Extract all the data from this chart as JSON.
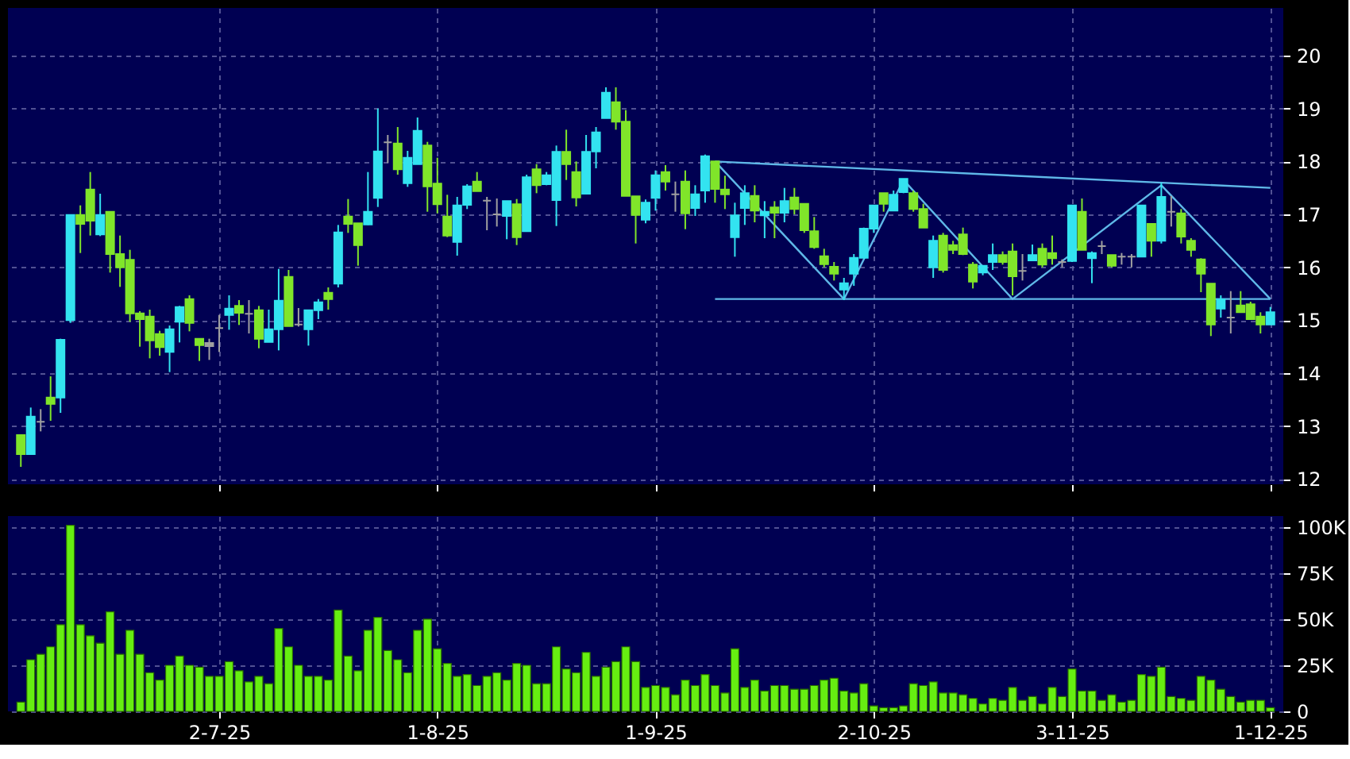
{
  "chart_data": [
    {
      "type": "candlestick",
      "tick_labels": "y",
      "grid": true,
      "categories": [
        null,
        null,
        null,
        null,
        null,
        null,
        null,
        null,
        null,
        null,
        null,
        null,
        null,
        null,
        null,
        null,
        null,
        null,
        null,
        null,
        null,
        null,
        null,
        null,
        null,
        null,
        null,
        null,
        null,
        null,
        null,
        null,
        null,
        null,
        null,
        null,
        null,
        null,
        null,
        null,
        null,
        null,
        null,
        null,
        null,
        null,
        null,
        null,
        null,
        null,
        null,
        null,
        null,
        null,
        null,
        null,
        null,
        null,
        null,
        null,
        null,
        null,
        null,
        null,
        null,
        null,
        null,
        null,
        null,
        null,
        null,
        null,
        null,
        null,
        null,
        null,
        null,
        null,
        null,
        null,
        null,
        null,
        null,
        null,
        null,
        null,
        null,
        null,
        null,
        null,
        null,
        null,
        null,
        null,
        null,
        null,
        null,
        null,
        null,
        null,
        null,
        null,
        null,
        null,
        null,
        null,
        null,
        null,
        null,
        null,
        null,
        null,
        null,
        null,
        null,
        null,
        null,
        null,
        null,
        null,
        null,
        null,
        null,
        null,
        null,
        null,
        null
      ],
      "ohlc": [
        [
          12.83,
          12.83,
          12.23,
          12.47
        ],
        [
          12.47,
          13.35,
          12.47,
          13.18
        ],
        [
          13.08,
          13.32,
          12.9,
          13.08
        ],
        [
          13.54,
          13.94,
          13.1,
          13.42
        ],
        [
          13.54,
          14.65,
          13.25,
          14.63
        ],
        [
          15.0,
          16.99,
          14.95,
          16.99
        ],
        [
          16.99,
          17.17,
          16.27,
          16.82
        ],
        [
          17.47,
          17.8,
          16.6,
          16.88
        ],
        [
          16.62,
          17.39,
          16.59,
          16.99
        ],
        [
          17.05,
          17.05,
          15.9,
          16.25
        ],
        [
          16.25,
          16.6,
          15.63,
          16.0
        ],
        [
          16.14,
          16.33,
          14.97,
          15.13
        ],
        [
          15.13,
          15.17,
          14.5,
          15.02
        ],
        [
          15.07,
          15.2,
          14.28,
          14.62
        ],
        [
          14.74,
          14.8,
          14.33,
          14.49
        ],
        [
          14.4,
          14.9,
          14.02,
          14.83
        ],
        [
          14.97,
          15.27,
          14.58,
          15.25
        ],
        [
          15.4,
          15.47,
          14.79,
          14.95
        ],
        [
          14.65,
          14.65,
          14.23,
          14.53
        ],
        [
          14.57,
          14.65,
          14.25,
          14.51
        ],
        [
          14.85,
          15.1,
          14.4,
          14.85
        ],
        [
          15.1,
          15.47,
          14.82,
          15.22
        ],
        [
          15.27,
          15.38,
          14.91,
          15.14
        ],
        [
          15.12,
          15.38,
          14.75,
          15.12
        ],
        [
          15.19,
          15.27,
          14.47,
          14.65
        ],
        [
          14.59,
          15.2,
          14.59,
          14.83
        ],
        [
          14.83,
          15.97,
          14.43,
          15.37
        ],
        [
          15.82,
          15.95,
          14.89,
          14.89
        ],
        [
          14.92,
          15.23,
          14.88,
          14.92
        ],
        [
          14.83,
          15.19,
          14.52,
          15.19
        ],
        [
          15.19,
          15.4,
          15.02,
          15.34
        ],
        [
          15.52,
          15.62,
          15.2,
          15.4
        ],
        [
          15.69,
          16.8,
          15.62,
          16.66
        ],
        [
          16.96,
          17.29,
          16.65,
          16.82
        ],
        [
          16.83,
          16.83,
          16.03,
          16.42
        ],
        [
          16.81,
          17.8,
          16.8,
          17.05
        ],
        [
          17.31,
          19.0,
          17.14,
          18.19
        ],
        [
          18.36,
          18.5,
          17.97,
          18.36
        ],
        [
          18.34,
          18.65,
          17.75,
          17.85
        ],
        [
          17.59,
          18.2,
          17.52,
          18.07
        ],
        [
          17.95,
          18.83,
          17.95,
          18.58
        ],
        [
          18.3,
          18.37,
          17.05,
          17.53
        ],
        [
          17.58,
          18.07,
          17.02,
          17.19
        ],
        [
          16.96,
          17.37,
          16.57,
          16.6
        ],
        [
          16.48,
          17.33,
          16.22,
          17.17
        ],
        [
          17.18,
          17.57,
          17.1,
          17.53
        ],
        [
          17.62,
          17.8,
          17.44,
          17.44
        ],
        [
          17.26,
          17.33,
          16.7,
          17.26
        ],
        [
          17.0,
          17.3,
          16.77,
          17.0
        ],
        [
          16.97,
          17.25,
          16.53,
          17.25
        ],
        [
          17.19,
          17.29,
          16.42,
          16.57
        ],
        [
          16.68,
          17.75,
          16.68,
          17.7
        ],
        [
          17.85,
          17.95,
          17.4,
          17.55
        ],
        [
          17.57,
          17.8,
          17.55,
          17.74
        ],
        [
          17.27,
          18.3,
          16.78,
          18.18
        ],
        [
          18.18,
          18.6,
          17.65,
          17.95
        ],
        [
          17.8,
          18.0,
          17.15,
          17.32
        ],
        [
          17.39,
          18.5,
          17.39,
          18.18
        ],
        [
          18.19,
          18.65,
          17.87,
          18.55
        ],
        [
          18.82,
          19.4,
          18.82,
          19.3
        ],
        [
          19.12,
          19.4,
          18.6,
          18.75
        ],
        [
          18.75,
          18.97,
          17.35,
          17.35
        ],
        [
          17.34,
          17.34,
          16.45,
          16.99
        ],
        [
          16.9,
          17.28,
          16.83,
          17.22
        ],
        [
          17.31,
          17.83,
          17.07,
          17.74
        ],
        [
          17.8,
          17.93,
          17.45,
          17.62
        ],
        [
          17.38,
          17.62,
          17.05,
          17.38
        ],
        [
          17.62,
          17.83,
          16.72,
          17.02
        ],
        [
          17.12,
          17.55,
          16.97,
          17.38
        ],
        [
          17.45,
          18.13,
          17.22,
          18.1
        ],
        [
          18.0,
          18.0,
          17.22,
          17.48
        ],
        [
          17.47,
          17.73,
          17.1,
          17.38
        ],
        [
          16.57,
          17.22,
          16.2,
          16.98
        ],
        [
          17.12,
          17.55,
          16.8,
          17.4
        ],
        [
          17.35,
          17.55,
          16.85,
          17.07
        ],
        [
          16.98,
          17.25,
          16.55,
          17.05
        ],
        [
          17.13,
          17.25,
          16.55,
          17.03
        ],
        [
          17.03,
          17.5,
          16.85,
          17.25
        ],
        [
          17.32,
          17.5,
          17.0,
          17.1
        ],
        [
          17.2,
          17.2,
          16.65,
          16.7
        ],
        [
          16.68,
          16.95,
          16.35,
          16.38
        ],
        [
          16.21,
          16.35,
          16.0,
          16.06
        ],
        [
          16.01,
          16.1,
          15.75,
          15.88
        ],
        [
          15.58,
          15.8,
          15.38,
          15.7
        ],
        [
          15.88,
          16.25,
          15.65,
          16.18
        ],
        [
          16.18,
          16.75,
          16.18,
          16.73
        ],
        [
          16.73,
          17.17,
          16.65,
          17.17
        ],
        [
          17.4,
          17.4,
          17.05,
          17.2
        ],
        [
          17.07,
          17.45,
          17.07,
          17.37
        ],
        [
          17.42,
          17.67,
          17.4,
          17.67
        ],
        [
          17.4,
          17.45,
          17.05,
          17.1
        ],
        [
          17.1,
          17.2,
          16.75,
          16.75
        ],
        [
          16.0,
          16.6,
          15.8,
          16.5
        ],
        [
          16.6,
          16.65,
          15.9,
          15.95
        ],
        [
          16.42,
          16.5,
          16.25,
          16.33
        ],
        [
          16.62,
          16.75,
          16.23,
          16.25
        ],
        [
          16.05,
          16.1,
          15.6,
          15.73
        ],
        [
          15.9,
          16.03,
          15.85,
          16.03
        ],
        [
          16.1,
          16.45,
          15.95,
          16.23
        ],
        [
          16.23,
          16.3,
          16.05,
          16.1
        ],
        [
          16.3,
          16.45,
          15.47,
          15.83
        ],
        [
          15.93,
          16.25,
          15.75,
          15.93
        ],
        [
          16.13,
          16.43,
          16.13,
          16.23
        ],
        [
          16.35,
          16.45,
          16.0,
          16.05
        ],
        [
          16.27,
          16.6,
          16.05,
          16.17
        ],
        [
          16.1,
          16.15,
          16.0,
          16.1
        ],
        [
          16.12,
          17.17,
          16.1,
          17.17
        ],
        [
          17.05,
          17.3,
          16.33,
          16.33
        ],
        [
          16.17,
          16.3,
          15.7,
          16.27
        ],
        [
          16.4,
          16.5,
          16.25,
          16.4
        ],
        [
          16.23,
          16.23,
          16.0,
          16.03
        ],
        [
          16.2,
          16.27,
          16.05,
          16.2
        ],
        [
          16.2,
          16.25,
          16.0,
          16.2
        ],
        [
          16.2,
          17.17,
          16.2,
          17.17
        ],
        [
          16.82,
          16.82,
          16.2,
          16.5
        ],
        [
          16.5,
          17.6,
          16.45,
          17.33
        ],
        [
          17.05,
          17.35,
          16.77,
          17.05
        ],
        [
          17.02,
          17.1,
          16.45,
          16.58
        ],
        [
          16.5,
          16.55,
          16.2,
          16.33
        ],
        [
          16.15,
          16.17,
          15.53,
          15.88
        ],
        [
          15.69,
          15.69,
          14.7,
          14.92
        ],
        [
          15.22,
          15.47,
          15.05,
          15.39
        ],
        [
          15.05,
          15.55,
          14.75,
          15.05
        ],
        [
          15.28,
          15.55,
          15.15,
          15.15
        ],
        [
          15.3,
          15.35,
          15.02,
          15.02
        ],
        [
          15.07,
          15.15,
          14.75,
          14.92
        ],
        [
          14.92,
          15.25,
          14.92,
          15.15
        ]
      ],
      "colors": [
        "#80e52a",
        "#33e3f0",
        "#a0a0a0",
        "#80e52a",
        "#33e3f0",
        "#33e3f0",
        "#80e52a",
        "#80e52a",
        "#33e3f0",
        "#80e52a",
        "#80e52a",
        "#80e52a",
        "#80e52a",
        "#80e52a",
        "#80e52a",
        "#33e3f0",
        "#33e3f0",
        "#80e52a",
        "#80e52a",
        "#a0a0a0",
        "#a0a0a0",
        "#33e3f0",
        "#80e52a",
        "#a0a0a0",
        "#80e52a",
        "#33e3f0",
        "#33e3f0",
        "#80e52a",
        "#a0a0a0",
        "#33e3f0",
        "#33e3f0",
        "#80e52a",
        "#33e3f0",
        "#80e52a",
        "#80e52a",
        "#33e3f0",
        "#33e3f0",
        "#a0a0a0",
        "#80e52a",
        "#33e3f0",
        "#33e3f0",
        "#80e52a",
        "#80e52a",
        "#80e52a",
        "#33e3f0",
        "#33e3f0",
        "#80e52a",
        "#a0a0a0",
        "#a0a0a0",
        "#33e3f0",
        "#80e52a",
        "#33e3f0",
        "#80e52a",
        "#33e3f0",
        "#33e3f0",
        "#80e52a",
        "#80e52a",
        "#33e3f0",
        "#33e3f0",
        "#33e3f0",
        "#80e52a",
        "#80e52a",
        "#80e52a",
        "#33e3f0",
        "#33e3f0",
        "#80e52a",
        "#a0a0a0",
        "#80e52a",
        "#33e3f0",
        "#33e3f0",
        "#80e52a",
        "#80e52a",
        "#33e3f0",
        "#33e3f0",
        "#80e52a",
        "#33e3f0",
        "#80e52a",
        "#33e3f0",
        "#80e52a",
        "#80e52a",
        "#80e52a",
        "#80e52a",
        "#80e52a",
        "#33e3f0",
        "#33e3f0",
        "#33e3f0",
        "#33e3f0",
        "#80e52a",
        "#33e3f0",
        "#33e3f0",
        "#80e52a",
        "#80e52a",
        "#33e3f0",
        "#80e52a",
        "#80e52a",
        "#80e52a",
        "#80e52a",
        "#33e3f0",
        "#33e3f0",
        "#80e52a",
        "#80e52a",
        "#a0a0a0",
        "#33e3f0",
        "#80e52a",
        "#80e52a",
        "#a0a0a0",
        "#33e3f0",
        "#80e52a",
        "#33e3f0",
        "#a0a0a0",
        "#80e52a",
        "#a0a0a0",
        "#a0a0a0",
        "#33e3f0",
        "#80e52a",
        "#33e3f0",
        "#a0a0a0",
        "#80e52a",
        "#80e52a",
        "#80e52a",
        "#80e52a",
        "#33e3f0",
        "#a0a0a0",
        "#80e52a",
        "#80e52a",
        "#80e52a",
        "#33e3f0"
      ],
      "series": [
        {
          "type": "line",
          "color": "#5fb8e8",
          "values": [
            null,
            null,
            null,
            null,
            null,
            null,
            null,
            null,
            null,
            null,
            null,
            null,
            null,
            null,
            null,
            null,
            null,
            null,
            null,
            null,
            null,
            null,
            null,
            null,
            null,
            null,
            null,
            null,
            null,
            null,
            null,
            null,
            null,
            null,
            null,
            null,
            null,
            null,
            null,
            null,
            null,
            null,
            null,
            null,
            null,
            null,
            null,
            null,
            null,
            null,
            null,
            null,
            null,
            null,
            null,
            null,
            null,
            null,
            null,
            null,
            null,
            null,
            null,
            null,
            null,
            null,
            null,
            null,
            null,
            null,
            18.0,
            null,
            null,
            null,
            null,
            null,
            null,
            null,
            null,
            null,
            null,
            null,
            null,
            null,
            null,
            null,
            null,
            null,
            null,
            null,
            null,
            null,
            null,
            null,
            null,
            null,
            null,
            null,
            null,
            null,
            null,
            null,
            null,
            null,
            null,
            null,
            null,
            null,
            null,
            null,
            null,
            null,
            null,
            null,
            null,
            null,
            null,
            null,
            null,
            null,
            null,
            null,
            null,
            null,
            null,
            null,
            17.5
          ]
        },
        {
          "type": "line",
          "color": "#5fb8e8",
          "values": [
            null,
            null,
            null,
            null,
            null,
            null,
            null,
            null,
            null,
            null,
            null,
            null,
            null,
            null,
            null,
            null,
            null,
            null,
            null,
            null,
            null,
            null,
            null,
            null,
            null,
            null,
            null,
            null,
            null,
            null,
            null,
            null,
            null,
            null,
            null,
            null,
            null,
            null,
            null,
            null,
            null,
            null,
            null,
            null,
            null,
            null,
            null,
            null,
            null,
            null,
            null,
            null,
            null,
            null,
            null,
            null,
            null,
            null,
            null,
            null,
            null,
            null,
            null,
            null,
            null,
            null,
            null,
            null,
            null,
            null,
            15.4,
            null,
            null,
            null,
            null,
            null,
            null,
            null,
            null,
            null,
            null,
            null,
            null,
            null,
            null,
            null,
            null,
            null,
            null,
            null,
            null,
            null,
            null,
            null,
            null,
            null,
            null,
            null,
            null,
            null,
            null,
            null,
            null,
            null,
            null,
            null,
            null,
            null,
            null,
            null,
            null,
            null,
            null,
            null,
            null,
            null,
            null,
            null,
            null,
            null,
            null,
            null,
            null,
            null,
            null,
            null,
            15.4
          ]
        },
        {
          "type": "line",
          "color": "#5fb8e8",
          "values": [
            null,
            null,
            null,
            null,
            null,
            null,
            null,
            null,
            null,
            null,
            null,
            null,
            null,
            null,
            null,
            null,
            null,
            null,
            null,
            null,
            null,
            null,
            null,
            null,
            null,
            null,
            null,
            null,
            null,
            null,
            null,
            null,
            null,
            null,
            null,
            null,
            null,
            null,
            null,
            null,
            null,
            null,
            null,
            null,
            null,
            null,
            null,
            null,
            null,
            null,
            null,
            null,
            null,
            null,
            null,
            null,
            null,
            null,
            null,
            null,
            null,
            null,
            null,
            null,
            null,
            null,
            null,
            null,
            null,
            null,
            18.0,
            null,
            null,
            null,
            null,
            null,
            null,
            null,
            null,
            null,
            null,
            null,
            null,
            15.4,
            null,
            null,
            null,
            null,
            null,
            17.65,
            null,
            null,
            null,
            null,
            null,
            null,
            null,
            null,
            null,
            null,
            15.4,
            null,
            null,
            null,
            null,
            null,
            null,
            null,
            null,
            null,
            null,
            null,
            null,
            null,
            null,
            17.55,
            null,
            null,
            null,
            null,
            null,
            null,
            null,
            null,
            null,
            null,
            15.4
          ]
        }
      ],
      "ylim": [
        11.9,
        20.9
      ],
      "yticks": [
        12,
        13,
        14,
        15,
        16,
        17,
        18,
        19,
        20
      ]
    },
    {
      "type": "bar",
      "grid": true,
      "color": "#66ee11",
      "categories": [
        null,
        null,
        null,
        null,
        null,
        null,
        null,
        null,
        null,
        null,
        null,
        null,
        null,
        null,
        null,
        null,
        null,
        null,
        null,
        null,
        "2-7-25",
        null,
        null,
        null,
        null,
        null,
        null,
        null,
        null,
        null,
        null,
        null,
        null,
        null,
        null,
        null,
        null,
        null,
        null,
        null,
        null,
        null,
        "1-8-25",
        null,
        null,
        null,
        null,
        null,
        null,
        null,
        null,
        null,
        null,
        null,
        null,
        null,
        null,
        null,
        null,
        null,
        null,
        null,
        null,
        null,
        "1-9-25",
        null,
        null,
        null,
        null,
        null,
        null,
        null,
        null,
        null,
        null,
        null,
        null,
        null,
        null,
        null,
        null,
        null,
        null,
        null,
        null,
        null,
        "2-10-25",
        null,
        null,
        null,
        null,
        null,
        null,
        null,
        null,
        null,
        null,
        null,
        null,
        null,
        null,
        null,
        null,
        null,
        null,
        null,
        "3-11-25",
        null,
        null,
        null,
        null,
        null,
        null,
        null,
        null,
        null,
        null,
        null,
        null,
        null,
        null,
        null,
        null,
        null,
        null,
        null,
        "1-12-25"
      ],
      "values": [
        5000,
        28000,
        31000,
        35000,
        47000,
        101000,
        47000,
        41000,
        37000,
        54000,
        31000,
        44000,
        31000,
        21000,
        17000,
        25000,
        30000,
        25000,
        24000,
        19000,
        19000,
        27000,
        22000,
        16000,
        19000,
        15000,
        45000,
        35000,
        25000,
        19000,
        19000,
        17000,
        55000,
        30000,
        22000,
        44000,
        51000,
        33000,
        28000,
        21000,
        44000,
        50000,
        34000,
        26000,
        19000,
        20000,
        14000,
        19000,
        21000,
        17000,
        26000,
        25000,
        15000,
        15000,
        35000,
        23000,
        21000,
        32000,
        19000,
        24000,
        27000,
        35000,
        27000,
        13000,
        14000,
        13000,
        9000,
        17000,
        14000,
        20000,
        14000,
        10000,
        34000,
        13000,
        17000,
        11000,
        14000,
        14000,
        12000,
        12000,
        14000,
        17000,
        18000,
        11000,
        10000,
        15000,
        3000,
        2000,
        2000,
        3000,
        15000,
        14000,
        16000,
        10000,
        10000,
        9000,
        7000,
        4000,
        7000,
        6000,
        13000,
        6000,
        8000,
        4000,
        13000,
        8000,
        23000,
        11000,
        11000,
        6000,
        9000,
        5000,
        6000,
        20000,
        19000,
        24000,
        8000,
        7000,
        6000,
        19000,
        17000,
        12000,
        8000,
        5000,
        6000,
        6000,
        2000
      ],
      "ylim": [
        0,
        106000
      ],
      "yticks": [
        {
          "value": 0,
          "label": "0"
        },
        {
          "value": 25000,
          "label": "25K"
        },
        {
          "value": 50000,
          "label": "50K"
        },
        {
          "value": 75000,
          "label": "75K"
        },
        {
          "value": 100000,
          "label": "100K"
        }
      ]
    }
  ]
}
